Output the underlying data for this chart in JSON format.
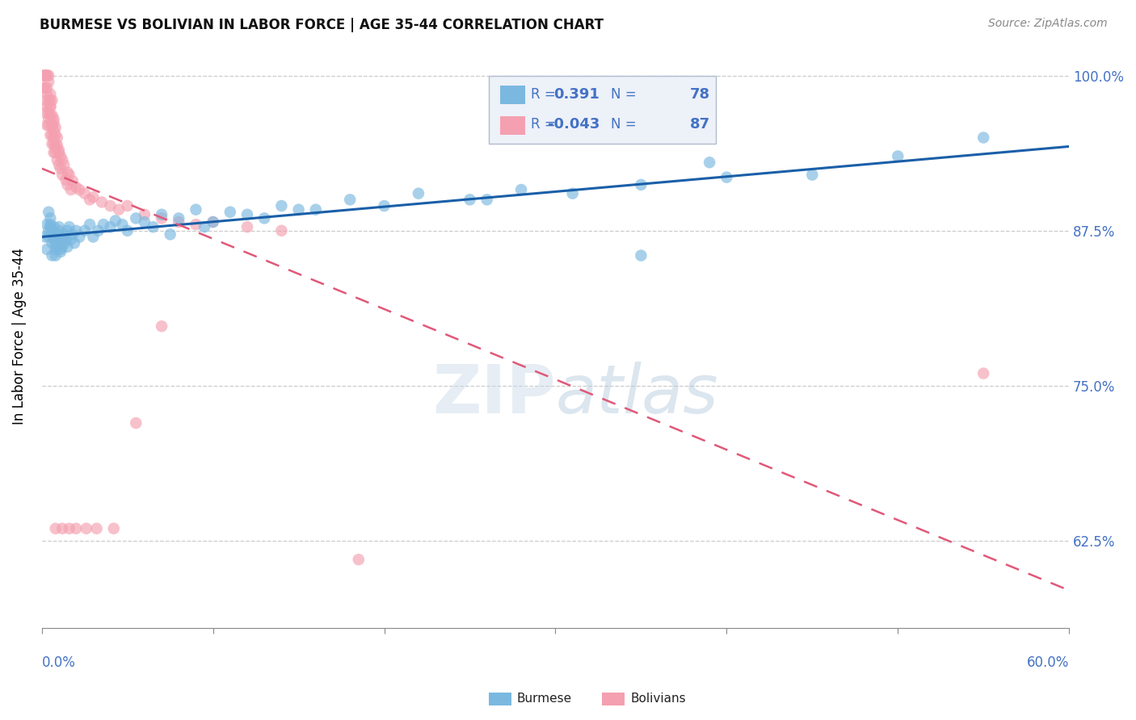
{
  "title": "BURMESE VS BOLIVIAN IN LABOR FORCE | AGE 35-44 CORRELATION CHART",
  "source": "Source: ZipAtlas.com",
  "ylabel": "In Labor Force | Age 35-44",
  "xmin": 0.0,
  "xmax": 0.6,
  "ymin": 0.555,
  "ymax": 1.025,
  "burmese_R": 0.391,
  "burmese_N": 78,
  "bolivian_R": -0.043,
  "bolivian_N": 87,
  "blue_color": "#7ab8e0",
  "blue_line_color": "#1a5fa8",
  "pink_color": "#f4a0b0",
  "pink_line_color": "#e05878",
  "yticks": [
    0.625,
    0.75,
    0.875,
    1.0
  ],
  "ytick_labels": [
    "62.5%",
    "75.0%",
    "87.5%",
    "100.0%"
  ],
  "burmese_x": [
    0.002,
    0.003,
    0.004,
    0.003,
    0.004,
    0.005,
    0.004,
    0.005,
    0.006,
    0.005,
    0.006,
    0.007,
    0.006,
    0.007,
    0.008,
    0.007,
    0.008,
    0.009,
    0.008,
    0.009,
    0.01,
    0.009,
    0.01,
    0.011,
    0.01,
    0.012,
    0.011,
    0.013,
    0.012,
    0.014,
    0.013,
    0.015,
    0.014,
    0.016,
    0.015,
    0.018,
    0.017,
    0.02,
    0.019,
    0.022,
    0.025,
    0.028,
    0.03,
    0.033,
    0.036,
    0.04,
    0.043,
    0.047,
    0.05,
    0.055,
    0.06,
    0.065,
    0.07,
    0.08,
    0.09,
    0.1,
    0.11,
    0.12,
    0.14,
    0.16,
    0.18,
    0.2,
    0.22,
    0.25,
    0.28,
    0.31,
    0.35,
    0.4,
    0.45,
    0.5,
    0.55,
    0.39,
    0.26,
    0.15,
    0.13,
    0.095,
    0.075,
    0.35
  ],
  "burmese_y": [
    0.87,
    0.88,
    0.89,
    0.86,
    0.875,
    0.885,
    0.87,
    0.878,
    0.865,
    0.88,
    0.875,
    0.868,
    0.855,
    0.872,
    0.86,
    0.878,
    0.865,
    0.87,
    0.855,
    0.863,
    0.878,
    0.862,
    0.872,
    0.86,
    0.875,
    0.868,
    0.858,
    0.872,
    0.862,
    0.87,
    0.865,
    0.875,
    0.868,
    0.878,
    0.862,
    0.872,
    0.868,
    0.875,
    0.865,
    0.87,
    0.875,
    0.88,
    0.87,
    0.875,
    0.88,
    0.878,
    0.883,
    0.88,
    0.875,
    0.885,
    0.882,
    0.878,
    0.888,
    0.885,
    0.892,
    0.882,
    0.89,
    0.888,
    0.895,
    0.892,
    0.9,
    0.895,
    0.905,
    0.9,
    0.908,
    0.905,
    0.912,
    0.918,
    0.92,
    0.935,
    0.95,
    0.93,
    0.9,
    0.892,
    0.885,
    0.878,
    0.872,
    0.855
  ],
  "bolivian_x": [
    0.001,
    0.001,
    0.002,
    0.002,
    0.001,
    0.002,
    0.003,
    0.002,
    0.003,
    0.003,
    0.002,
    0.003,
    0.004,
    0.003,
    0.004,
    0.004,
    0.003,
    0.004,
    0.005,
    0.004,
    0.005,
    0.005,
    0.004,
    0.005,
    0.006,
    0.005,
    0.006,
    0.006,
    0.005,
    0.006,
    0.007,
    0.006,
    0.007,
    0.007,
    0.006,
    0.007,
    0.008,
    0.007,
    0.008,
    0.008,
    0.007,
    0.008,
    0.009,
    0.008,
    0.009,
    0.01,
    0.009,
    0.01,
    0.011,
    0.01,
    0.012,
    0.011,
    0.013,
    0.012,
    0.015,
    0.014,
    0.016,
    0.015,
    0.018,
    0.017,
    0.02,
    0.022,
    0.025,
    0.028,
    0.03,
    0.035,
    0.04,
    0.045,
    0.05,
    0.06,
    0.07,
    0.08,
    0.09,
    0.1,
    0.12,
    0.14,
    0.07,
    0.055,
    0.042,
    0.032,
    0.026,
    0.02,
    0.016,
    0.012,
    0.008,
    0.55,
    0.185
  ],
  "bolivian_y": [
    1.0,
    1.0,
    1.0,
    1.0,
    0.99,
    0.99,
    1.0,
    0.98,
    1.0,
    0.99,
    0.97,
    0.985,
    1.0,
    0.975,
    0.995,
    0.98,
    0.96,
    0.97,
    0.985,
    0.965,
    0.98,
    0.975,
    0.96,
    0.975,
    0.98,
    0.968,
    0.96,
    0.968,
    0.952,
    0.96,
    0.965,
    0.952,
    0.962,
    0.956,
    0.945,
    0.95,
    0.958,
    0.945,
    0.952,
    0.944,
    0.938,
    0.942,
    0.95,
    0.938,
    0.944,
    0.938,
    0.932,
    0.94,
    0.935,
    0.928,
    0.932,
    0.925,
    0.928,
    0.92,
    0.922,
    0.916,
    0.92,
    0.912,
    0.915,
    0.908,
    0.91,
    0.908,
    0.905,
    0.9,
    0.902,
    0.898,
    0.895,
    0.892,
    0.895,
    0.888,
    0.885,
    0.882,
    0.88,
    0.882,
    0.878,
    0.875,
    0.798,
    0.72,
    0.635,
    0.635,
    0.635,
    0.635,
    0.635,
    0.635,
    0.635,
    0.76,
    0.61
  ]
}
